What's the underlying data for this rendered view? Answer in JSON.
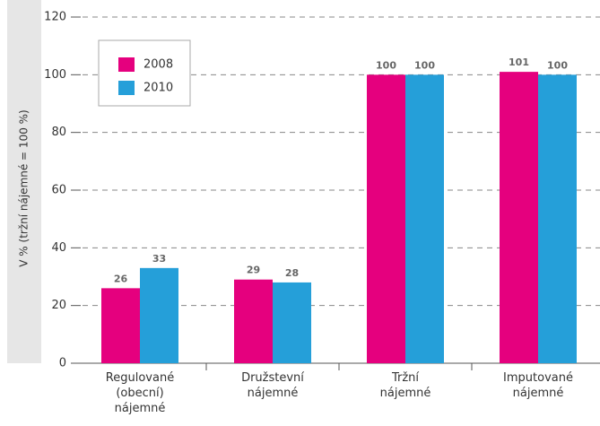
{
  "chart_data": {
    "type": "bar",
    "y_label": "V % (tržní nájemné = 100 %)",
    "categories": [
      "Regulované (obecní) nájemné",
      "Družstevní nájemné",
      "Tržní nájemné",
      "Imputované nájemné"
    ],
    "series": [
      {
        "name": "2008",
        "color": "#e5007e",
        "values": [
          26,
          29,
          100,
          101
        ]
      },
      {
        "name": "2010",
        "color": "#259fd9",
        "values": [
          33,
          28,
          100,
          100
        ]
      }
    ],
    "ylim": [
      0,
      120
    ],
    "yticks": [
      0,
      20,
      40,
      60,
      80,
      100,
      120
    ],
    "grid": true,
    "legend": "upper left"
  }
}
